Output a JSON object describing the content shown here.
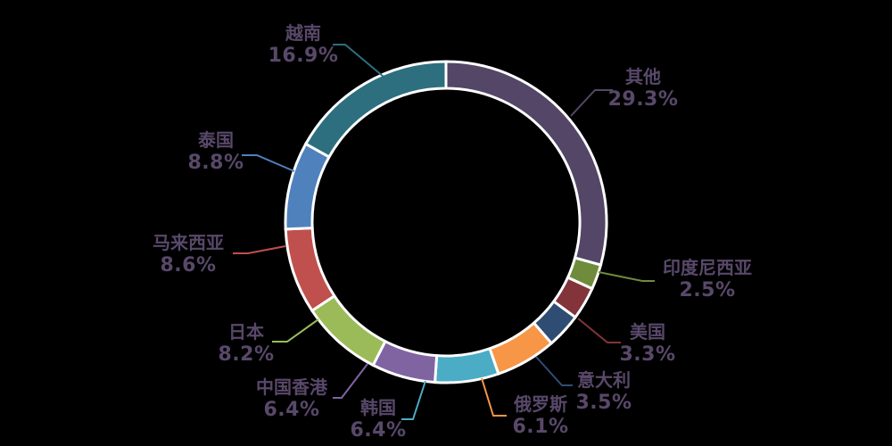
{
  "chart_data": {
    "type": "pie",
    "subtype": "donut",
    "title": "",
    "unit": "%",
    "start_angle_deg": 0,
    "direction": "clockwise",
    "legend": "none",
    "slices": [
      {
        "label": "其他",
        "value": 29.3,
        "display": "29.3%",
        "color": "#544667"
      },
      {
        "label": "印度尼西亚",
        "value": 2.5,
        "display": "2.5%",
        "color": "#6E8C3C"
      },
      {
        "label": "美国",
        "value": 3.3,
        "display": "3.3%",
        "color": "#83333A"
      },
      {
        "label": "意大利",
        "value": 3.5,
        "display": "3.5%",
        "color": "#2F4D73"
      },
      {
        "label": "俄罗斯",
        "value": 6.1,
        "display": "6.1%",
        "color": "#F79646"
      },
      {
        "label": "韩国",
        "value": 6.4,
        "display": "6.4%",
        "color": "#4BACC6"
      },
      {
        "label": "中国香港",
        "value": 6.4,
        "display": "6.4%",
        "color": "#8064A2"
      },
      {
        "label": "日本",
        "value": 8.2,
        "display": "8.2%",
        "color": "#9BBB59"
      },
      {
        "label": "马来西亚",
        "value": 8.6,
        "display": "8.6%",
        "color": "#C0504D"
      },
      {
        "label": "泰国",
        "value": 8.8,
        "display": "8.8%",
        "color": "#4F81BD"
      },
      {
        "label": "越南",
        "value": 16.9,
        "display": "16.9%",
        "color": "#2D6F7E"
      }
    ],
    "colors": {
      "background": "#000000",
      "separator": "#FFFFFF",
      "label_text": "#584869"
    }
  }
}
